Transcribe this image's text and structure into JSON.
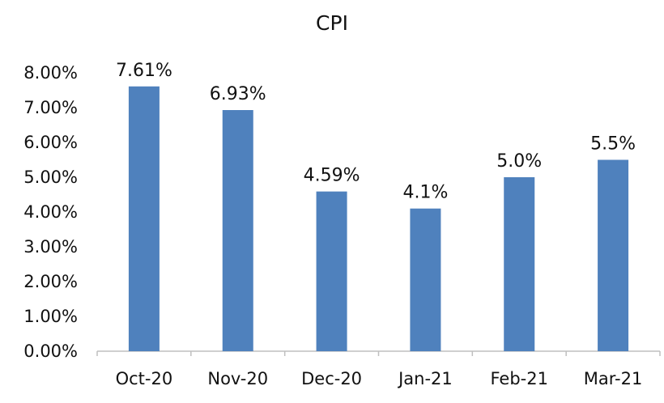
{
  "chart_data": {
    "type": "bar",
    "title": "CPI",
    "categories": [
      "Oct-20",
      "Nov-20",
      "Dec-20",
      "Jan-21",
      "Feb-21",
      "Mar-21"
    ],
    "values": [
      7.61,
      6.93,
      4.59,
      4.1,
      5.0,
      5.5
    ],
    "data_labels": [
      "7.61%",
      "6.93%",
      "4.59%",
      "4.1%",
      "5.0%",
      "5.5%"
    ],
    "ylim": [
      0,
      8
    ],
    "yticks": [
      0,
      1,
      2,
      3,
      4,
      5,
      6,
      7,
      8
    ],
    "ytick_labels": [
      "0.00%",
      "1.00%",
      "2.00%",
      "3.00%",
      "4.00%",
      "5.00%",
      "6.00%",
      "7.00%",
      "8.00%"
    ],
    "xlabel": "",
    "ylabel": "",
    "grid": false,
    "legend": "none",
    "colors": {
      "bar": "#4f81bd",
      "axis": "#bfbfbf",
      "text": "#111111"
    }
  }
}
